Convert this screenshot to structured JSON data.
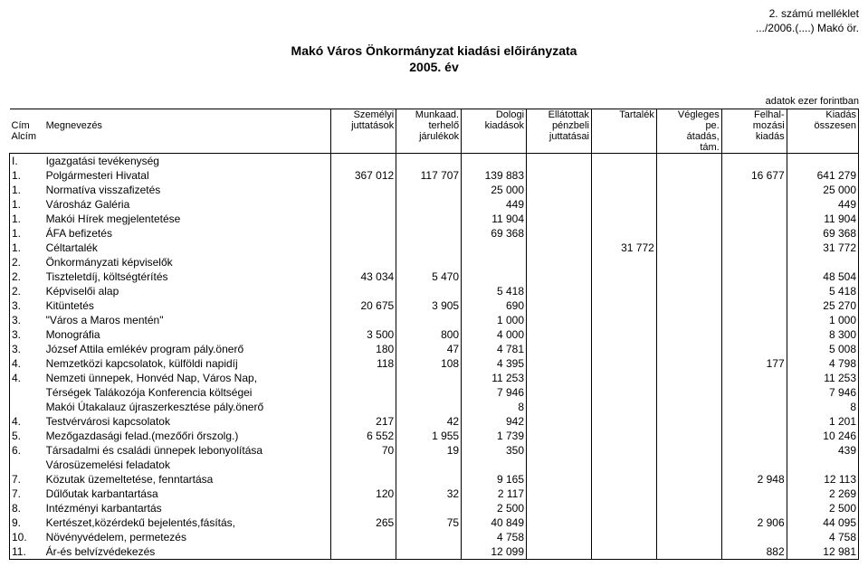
{
  "top_note": {
    "line1": "2. számú melléklet",
    "line2": ".../2006.(....) Makó ör."
  },
  "title": {
    "line1": "Makó Város Önkormányzat kiadási előirányzata",
    "line2": "2005. év"
  },
  "unit_note": "adatok ezer forintban",
  "columns": {
    "cim": "Cím",
    "alcim": "Alcím",
    "megnevezes": "Megnevezés",
    "c1_a": "Személyi",
    "c1_b": "juttatások",
    "c2_a": "Munkaad.",
    "c2_b": "terhelő",
    "c2_c": "járulékok",
    "c3_a": "Dologi",
    "c3_b": "kiadások",
    "c4_a": "Ellátottak",
    "c4_b": "pénzbeli",
    "c4_c": "juttatásai",
    "c5_a": "Tartalék",
    "c6_a": "Végleges",
    "c6_b": "pe.",
    "c6_c": "átadás,",
    "c6_d": "tám.",
    "c7_a": "Felhal-",
    "c7_b": "mozási",
    "c7_c": "kiadás",
    "c8_a": "Kiadás",
    "c8_b": "összesen"
  },
  "section1": {
    "cim": "I.",
    "name": "Igazgatási tevékenység"
  },
  "rows1": [
    {
      "cim": "1.",
      "name": "Polgármesteri Hivatal",
      "v": [
        "367 012",
        "117 707",
        "139 883",
        "",
        "",
        "",
        "16 677",
        "641 279"
      ]
    },
    {
      "cim": "1.",
      "name": "Normatíva visszafizetés",
      "v": [
        "",
        "",
        "25 000",
        "",
        "",
        "",
        "",
        "25 000"
      ]
    },
    {
      "cim": "1.",
      "name": "Városház Galéria",
      "v": [
        "",
        "",
        "449",
        "",
        "",
        "",
        "",
        "449"
      ]
    },
    {
      "cim": "1.",
      "name": "Makói Hírek megjelentetése",
      "v": [
        "",
        "",
        "11 904",
        "",
        "",
        "",
        "",
        "11 904"
      ]
    },
    {
      "cim": "1.",
      "name": "ÁFA befizetés",
      "v": [
        "",
        "",
        "69 368",
        "",
        "",
        "",
        "",
        "69 368"
      ]
    },
    {
      "cim": "1.",
      "name": "Céltartalék",
      "v": [
        "",
        "",
        "",
        "",
        "31 772",
        "",
        "",
        "31 772"
      ]
    },
    {
      "cim": "2.",
      "name": "Önkormányzati képviselők",
      "v": [
        "",
        "",
        "",
        "",
        "",
        "",
        "",
        ""
      ]
    },
    {
      "cim": "2.",
      "name": "Tiszteletdíj, költségtérítés",
      "v": [
        "43 034",
        "5 470",
        "",
        "",
        "",
        "",
        "",
        "48 504"
      ]
    },
    {
      "cim": "2.",
      "name": "Képviselői alap",
      "v": [
        "",
        "",
        "5 418",
        "",
        "",
        "",
        "",
        "5 418"
      ]
    },
    {
      "cim": "3.",
      "name": "Kitüntetés",
      "v": [
        "20 675",
        "3 905",
        "690",
        "",
        "",
        "",
        "",
        "25 270"
      ]
    },
    {
      "cim": "3.",
      "name": "\"Város a Maros mentén\"",
      "v": [
        "",
        "",
        "1 000",
        "",
        "",
        "",
        "",
        "1 000"
      ]
    },
    {
      "cim": "3.",
      "name": "Monográfia",
      "v": [
        "3 500",
        "800",
        "4 000",
        "",
        "",
        "",
        "",
        "8 300"
      ]
    },
    {
      "cim": "3.",
      "name": "József Attila emlékév program pály.önerő",
      "v": [
        "180",
        "47",
        "4 781",
        "",
        "",
        "",
        "",
        "5 008"
      ]
    },
    {
      "cim": "4.",
      "name": "Nemzetközi kapcsolatok, külföldi napidíj",
      "v": [
        "118",
        "108",
        "4 395",
        "",
        "",
        "",
        "177",
        "4 798"
      ]
    },
    {
      "cim": "4.",
      "name": "Nemzeti ünnepek, Honvéd Nap, Város Nap,",
      "v": [
        "",
        "",
        "11 253",
        "",
        "",
        "",
        "",
        "11 253"
      ]
    },
    {
      "cim": "",
      "name": "Térségek Talákozója Konferencia költségei",
      "v": [
        "",
        "",
        "7 946",
        "",
        "",
        "",
        "",
        "7 946"
      ]
    },
    {
      "cim": "",
      "name": "Makói Útakalauz újraszerkesztése pály.önerő",
      "v": [
        "",
        "",
        "8",
        "",
        "",
        "",
        "",
        "8"
      ]
    },
    {
      "cim": "4.",
      "name": "Testvérvárosi kapcsolatok",
      "v": [
        "217",
        "42",
        "942",
        "",
        "",
        "",
        "",
        "1 201"
      ]
    },
    {
      "cim": "5.",
      "name": "Mezőgazdasági felad.(mezőőri őrszolg.)",
      "v": [
        "6 552",
        "1 955",
        "1 739",
        "",
        "",
        "",
        "",
        "10 246"
      ]
    },
    {
      "cim": "6.",
      "name": "Társadalmi és családi ünnepek lebonyolítása",
      "v": [
        "70",
        "19",
        "350",
        "",
        "",
        "",
        "",
        "439"
      ]
    }
  ],
  "section2": {
    "cim": "",
    "name": "Városüzemelési feladatok"
  },
  "rows2": [
    {
      "cim": "7.",
      "name": "Közutak üzemeltetése, fenntartása",
      "v": [
        "",
        "",
        "9 165",
        "",
        "",
        "",
        "2 948",
        "12 113"
      ]
    },
    {
      "cim": "7.",
      "name": "Dűlőutak karbantartása",
      "v": [
        "120",
        "32",
        "2 117",
        "",
        "",
        "",
        "",
        "2 269"
      ]
    },
    {
      "cim": "8.",
      "name": "Intézményi karbantartás",
      "v": [
        "",
        "",
        "2 500",
        "",
        "",
        "",
        "",
        "2 500"
      ]
    },
    {
      "cim": "9.",
      "name": "Kertészet,közérdekű bejelentés,fásítás,",
      "v": [
        "265",
        "75",
        "40 849",
        "",
        "",
        "",
        "2 906",
        "44 095"
      ]
    },
    {
      "cim": "10.",
      "name": "Növényvédelem, permetezés",
      "v": [
        "",
        "",
        "4 758",
        "",
        "",
        "",
        "",
        "4 758"
      ]
    },
    {
      "cim": "11.",
      "name": "Ár-és belvízvédekezés",
      "v": [
        "",
        "",
        "12 099",
        "",
        "",
        "",
        "882",
        "12 981"
      ]
    }
  ],
  "style": {
    "bg": "#ffffff",
    "fg": "#000000",
    "font_family": "Arial, Helvetica, sans-serif",
    "body_fontsize": 12,
    "title_fontsize": 14,
    "border_color": "#000000"
  }
}
